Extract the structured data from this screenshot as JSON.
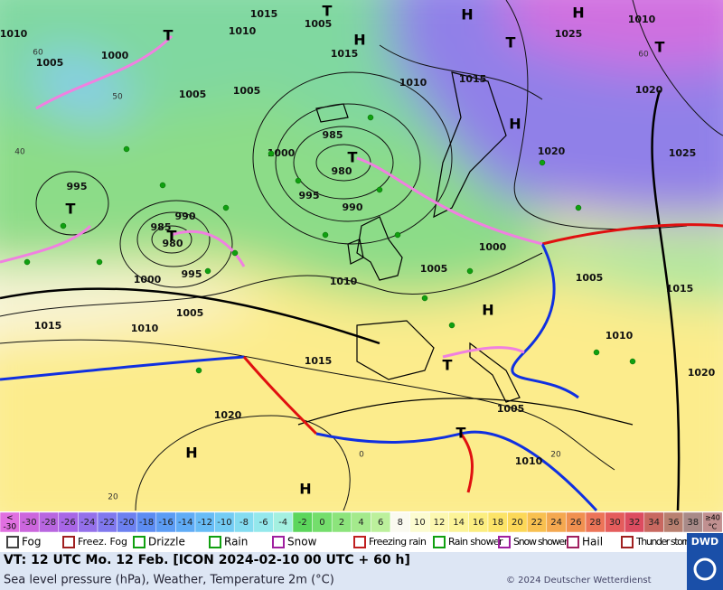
{
  "map": {
    "pressure_labels": [
      "1010",
      "1005",
      "1000",
      "1005",
      "1005",
      "1015",
      "1005",
      "1010",
      "1015",
      "1010",
      "1015",
      "1025",
      "1010",
      "1020",
      "1025",
      "1020",
      "985",
      "980",
      "995",
      "1000",
      "990",
      "995",
      "990",
      "985",
      "980",
      "995",
      "1000",
      "1005",
      "1010",
      "1015",
      "1010",
      "1005",
      "1000",
      "1005",
      "1015",
      "1010",
      "1020",
      "1015",
      "1005",
      "1010",
      "1020"
    ],
    "centers": [
      "H",
      "H",
      "H",
      "H",
      "H",
      "H",
      "H",
      "T",
      "T",
      "T",
      "T",
      "T",
      "T",
      "T",
      "T",
      "T"
    ],
    "grid_labels": [
      "60",
      "50",
      "40",
      "20",
      "0",
      "20",
      "60"
    ]
  },
  "temperature_scale": {
    "low_label": [
      "<",
      "-30"
    ],
    "values": [
      -30,
      -28,
      -26,
      -24,
      -22,
      -20,
      -18,
      -16,
      -14,
      -12,
      -10,
      -8,
      -6,
      -4,
      -2,
      0,
      2,
      4,
      6,
      8,
      10,
      12,
      14,
      16,
      18,
      20,
      22,
      24,
      26,
      28,
      30,
      32,
      34,
      36,
      38
    ],
    "high_label": [
      "≥40",
      "°C"
    ],
    "colors": [
      "#e070e0",
      "#cc66dd",
      "#b866e0",
      "#a866e6",
      "#9470ea",
      "#8078ee",
      "#6c80f0",
      "#5c8cf2",
      "#5c9cf4",
      "#60acf6",
      "#68bcf6",
      "#74ccf4",
      "#84dcf0",
      "#94e8ec",
      "#a4f0e0",
      "#5cd65c",
      "#74de6c",
      "#8ce47c",
      "#a4ea8c",
      "#bcf09c",
      "#fafaf0",
      "#fcfcd0",
      "#fcf8b0",
      "#fcf498",
      "#fcee80",
      "#fce468",
      "#fcd858",
      "#f8c050",
      "#f4a850",
      "#f09050",
      "#ec7458",
      "#e45c5c",
      "#dc4c60",
      "#c86860",
      "#b88070",
      "#a88a88",
      "#c09090"
    ]
  },
  "legend": [
    "Fog",
    "Freez. Fog",
    "Drizzle",
    "Rain",
    "Snow",
    "Freezing rain",
    "Rain shower",
    "Snow shower",
    "Hail",
    "Thunder storm"
  ],
  "footer": {
    "valid_time": "VT: 12 UTC Mo.  12 Feb. [ICON 2024-02-10  00 UTC + 60 h]",
    "description": "Sea level pressure (hPa), Weather, Temperature 2m (°C)",
    "copyright": "© 2024 Deutscher Wetterdienst",
    "logo": "DWD"
  }
}
